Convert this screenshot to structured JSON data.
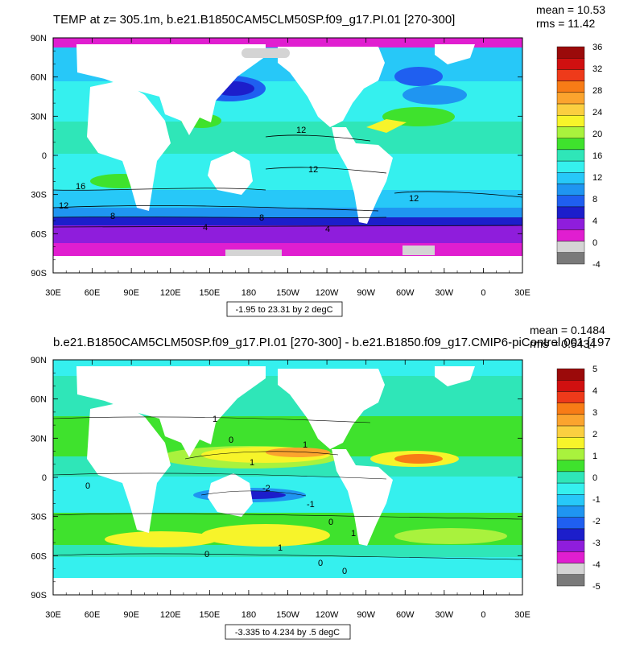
{
  "panels": [
    {
      "title": "TEMP at z= 305.1m, b.e21.B1850CAM5CLM50SP.f09_g17.PI.01 [270-300]",
      "mean_label": "mean = 10.53",
      "rms_label": "rms = 11.42",
      "range_label": "-1.95 to 23.31 by 2 degC",
      "contour_labels": [
        "12",
        "12",
        "16",
        "12",
        "8",
        "8",
        "4",
        "4",
        "12"
      ],
      "colorbar": {
        "labels": [
          "36",
          "32",
          "28",
          "24",
          "20",
          "16",
          "12",
          "8",
          "4",
          "0",
          "-4"
        ],
        "colors": [
          "#9b0a0a",
          "#d01010",
          "#ee3a1a",
          "#f87c16",
          "#fba42e",
          "#fbcf40",
          "#f7f42a",
          "#a9f23d",
          "#3fe22d",
          "#2fe6b8",
          "#35f0ee",
          "#27c8f8",
          "#1f95f1",
          "#1f5ff0",
          "#1c1ecb",
          "#8f1ddc",
          "#e01ed0",
          "#d4d4d4",
          "#7a7a7a"
        ]
      }
    },
    {
      "title": "b.e21.B1850CAM5CLM50SP.f09_g17.PI.01 [270-300] - b.e21.B1850.f09_g17.CMIP6-piControl.001 [197",
      "mean_label": "mean = 0.1484",
      "rms_label": "rms = 0.5434",
      "range_label": "-3.335 to 4.234 by .5 degC",
      "contour_labels": [
        "1",
        "0",
        "1",
        "1",
        "-2",
        "-1",
        "0",
        "1",
        "0",
        "1",
        "0",
        "0",
        "0"
      ],
      "colorbar": {
        "labels": [
          "5",
          "4",
          "3",
          "2",
          "1",
          "0",
          "-1",
          "-2",
          "-3",
          "-4",
          "-5"
        ],
        "colors": [
          "#9b0a0a",
          "#d01010",
          "#ee3a1a",
          "#f87c16",
          "#fba42e",
          "#fbcf40",
          "#f7f42a",
          "#a9f23d",
          "#3fe22d",
          "#2fe6b8",
          "#35f0ee",
          "#27c8f8",
          "#1f95f1",
          "#1f5ff0",
          "#1c1ecb",
          "#8f1ddc",
          "#e01ed0",
          "#d4d4d4",
          "#7a7a7a"
        ]
      }
    }
  ],
  "axes": {
    "lon_labels": [
      "30E",
      "60E",
      "90E",
      "120E",
      "150E",
      "180",
      "150W",
      "120W",
      "90W",
      "60W",
      "30W",
      "0",
      "30E"
    ],
    "lat_labels": [
      "90N",
      "60N",
      "30N",
      "0",
      "30S",
      "60S",
      "90S"
    ]
  }
}
